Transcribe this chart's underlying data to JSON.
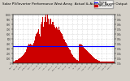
{
  "title": "Solar PV/Inverter Performance West Array  Actual & Average Power Output",
  "bg_color": "#d4d0c8",
  "plot_bg": "#ffffff",
  "bar_color": "#cc0000",
  "avg_line_color": "#0000ff",
  "avg_line_value": 0.35,
  "ylim": [
    0,
    1.0
  ],
  "grid_color": "#aaaaaa",
  "legend_labels": [
    "Current",
    "Actual/Mean"
  ],
  "legend_colors": [
    "#0000ff",
    "#cc0000"
  ],
  "bar_data": [
    0.04,
    0.04,
    0.04,
    0.05,
    0.05,
    0.06,
    0.06,
    0.07,
    0.07,
    0.08,
    0.08,
    0.09,
    0.1,
    0.1,
    0.11,
    0.12,
    0.13,
    0.14,
    0.15,
    0.16,
    0.17,
    0.18,
    0.2,
    0.22,
    0.24,
    0.26,
    0.28,
    0.3,
    0.33,
    0.36,
    0.38,
    0.4,
    0.38,
    0.36,
    0.4,
    0.42,
    0.38,
    0.36,
    0.4,
    0.38,
    0.42,
    0.44,
    0.46,
    0.5,
    0.55,
    0.6,
    0.58,
    0.62,
    0.65,
    0.6,
    0.7,
    0.65,
    0.6,
    0.55,
    0.7,
    0.8,
    0.85,
    0.9,
    0.95,
    0.88,
    0.75,
    0.85,
    0.9,
    0.95,
    1.0,
    0.9,
    0.85,
    0.95,
    1.0,
    0.92,
    0.85,
    0.8,
    0.9,
    0.95,
    0.92,
    0.85,
    0.8,
    0.85,
    0.88,
    0.85,
    0.78,
    0.72,
    0.75,
    0.78,
    0.72,
    0.75,
    0.7,
    0.72,
    0.68,
    0.7,
    0.75,
    0.7,
    0.68,
    0.65,
    0.68,
    0.62,
    0.6,
    0.58,
    0.55,
    0.52,
    0.5,
    0.48,
    0.46,
    0.44,
    0.42,
    0.4,
    0.38,
    0.36,
    0.34,
    0.32,
    0.3,
    0.28,
    0.26,
    0.24,
    0.22,
    0.2,
    0.18,
    0.16,
    0.14,
    0.13,
    0.12,
    0.11,
    0.1,
    0.09,
    0.08,
    0.07,
    0.07,
    0.06,
    0.06,
    0.05,
    0.38,
    0.42,
    0.4,
    0.38,
    0.36,
    0.38,
    0.37,
    0.36,
    0.34,
    0.33,
    0.32,
    0.3,
    0.29,
    0.28,
    0.27,
    0.26,
    0.25,
    0.24,
    0.23,
    0.22,
    0.21,
    0.2,
    0.19,
    0.18,
    0.17,
    0.16,
    0.15,
    0.14,
    0.13,
    0.12,
    0.11,
    0.1,
    0.09,
    0.08,
    0.08,
    0.07,
    0.07,
    0.06,
    0.06,
    0.05,
    0.05,
    0.05,
    0.04,
    0.04,
    0.04,
    0.04,
    0.04,
    0.03,
    0.03,
    0.03,
    0.03,
    0.03,
    0.03,
    0.03,
    0.03,
    0.03,
    0.03,
    0.03,
    0.03,
    0.03,
    0.03,
    0.03,
    0.03,
    0.03,
    0.03,
    0.03,
    0.03,
    0.03,
    0.03,
    0.03
  ],
  "ytick_vals": [
    0.0,
    0.1,
    0.2,
    0.3,
    0.4,
    0.5,
    0.6,
    0.7,
    0.8,
    0.9,
    1.0
  ],
  "ytick_labels_right": [
    "0.0k",
    "0.1k",
    "0.2k",
    "0.3k",
    "0.4k",
    "0.5k",
    "0.6k",
    "0.7k",
    "0.8k",
    "0.9k",
    "1.0k"
  ],
  "xtick_positions": [
    0,
    10,
    19,
    29,
    39,
    49,
    58,
    68,
    78,
    88,
    97,
    107,
    117,
    127,
    136,
    146,
    156,
    166,
    175,
    185,
    195,
    200
  ],
  "xtick_labels": [
    "Jan 1",
    "Jan 15",
    "Feb 1",
    "Feb 15",
    "Mar 1",
    "Mar 15",
    "Apr 1",
    "Apr 15",
    "May 1",
    "May 15",
    "Jun 1",
    "Jun 15",
    "Jul 1",
    "Jul 15",
    "Aug 1",
    "Aug 15",
    "Sep 1",
    "Sep 15",
    "Oct 1",
    "Oct 15",
    "Nov 1",
    ""
  ]
}
